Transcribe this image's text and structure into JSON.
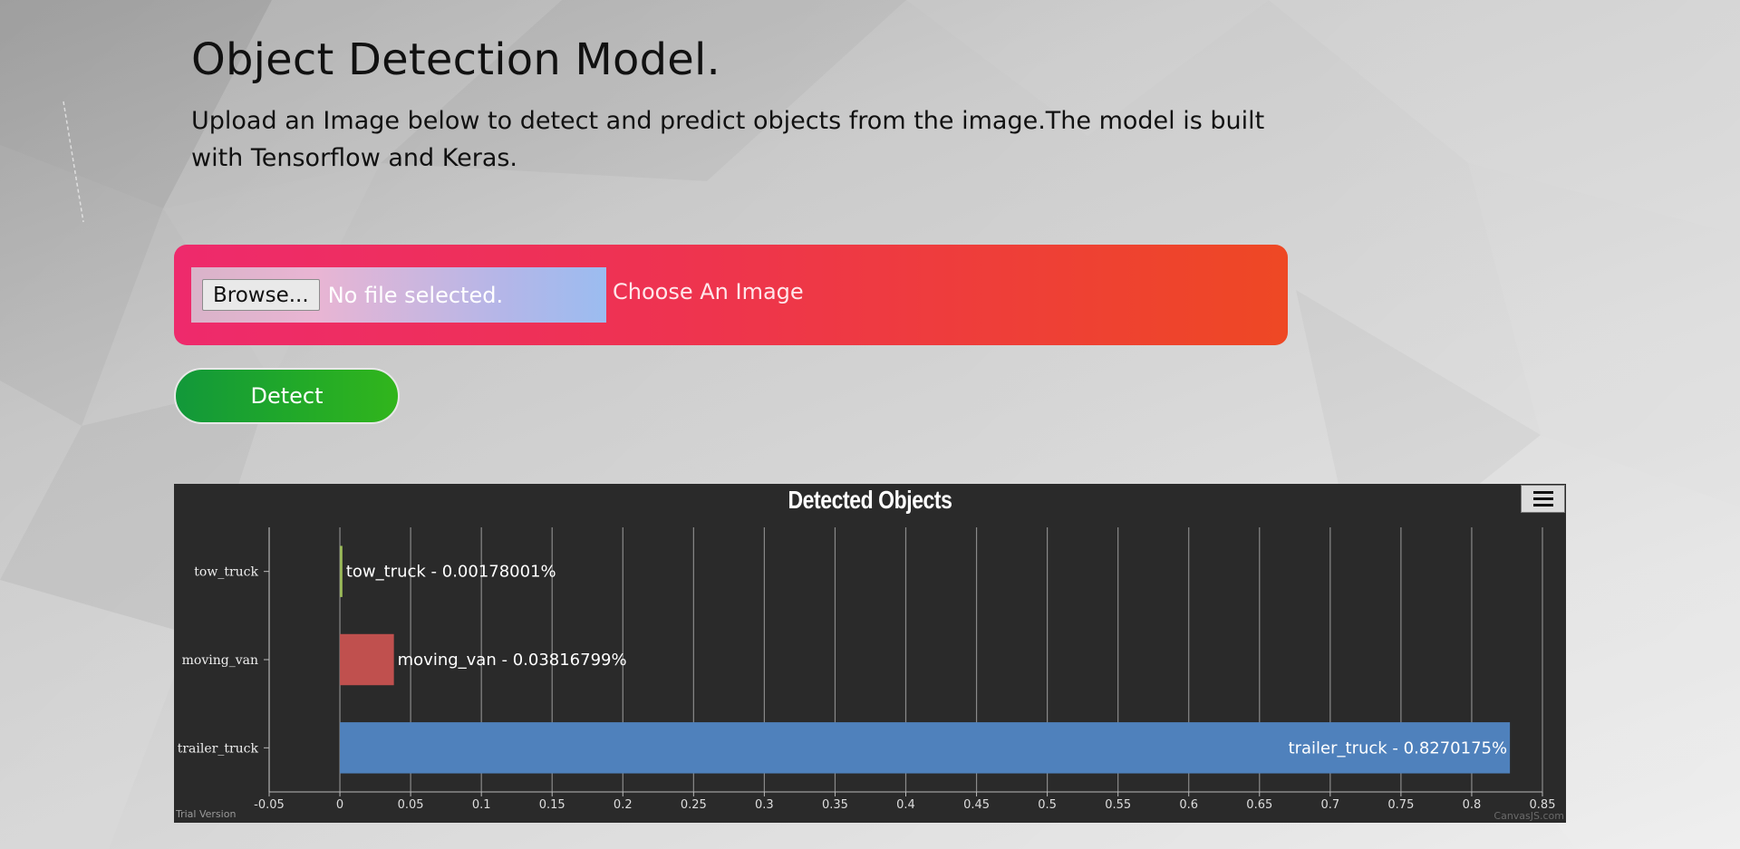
{
  "page": {
    "title": "Object Detection Model.",
    "description": "Upload an Image below to detect and predict objects from the image.The model is built with Tensorflow and Keras."
  },
  "upload": {
    "browse_label": "Browse...",
    "file_status": "No file selected.",
    "choose_label": "Choose An Image"
  },
  "detect_button": {
    "label": "Detect"
  },
  "chart_footer": {
    "trial": "Trial Version",
    "credit": "CanvasJS.com"
  },
  "chart_data": {
    "type": "bar",
    "title": "Detected Objects",
    "orientation": "horizontal",
    "categories": [
      "tow_truck",
      "moving_van",
      "trailer_truck"
    ],
    "values": [
      0.00178001,
      0.03816799,
      0.8270175
    ],
    "data_labels": [
      "tow_truck - 0.00178001%",
      "moving_van - 0.03816799%",
      "trailer_truck - 0.8270175%"
    ],
    "colors": [
      "#9bbb59",
      "#c0504e",
      "#4f81bc"
    ],
    "xlim": [
      -0.05,
      0.85
    ],
    "x_ticks": [
      "-0.05",
      "0",
      "0.05",
      "0.1",
      "0.15",
      "0.2",
      "0.25",
      "0.3",
      "0.35",
      "0.4",
      "0.45",
      "0.5",
      "0.55",
      "0.6",
      "0.65",
      "0.7",
      "0.75",
      "0.8",
      "0.85"
    ],
    "grid": true,
    "background": "#2a2a2a"
  }
}
